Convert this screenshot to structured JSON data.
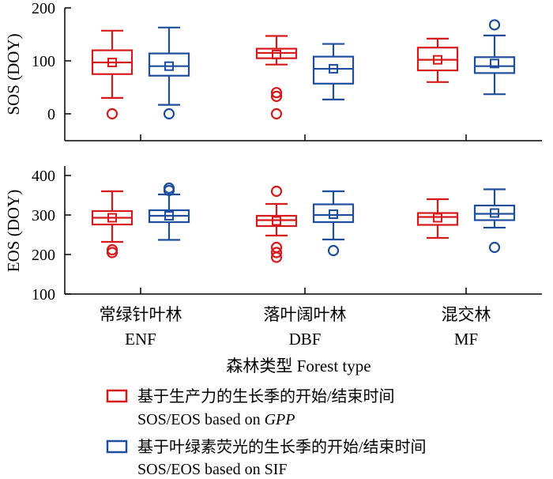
{
  "chart_data": {
    "type": "box",
    "colors": {
      "gpp": "#d7191c",
      "sif": "#1f4e9c",
      "axis": "#000000"
    },
    "xaxis": {
      "categories": [
        {
          "zh": "常绿针叶林",
          "en": "ENF"
        },
        {
          "zh": "落叶阔叶林",
          "en": "DBF"
        },
        {
          "zh": "混交林",
          "en": "MF"
        }
      ],
      "label": "森林类型 Forest type"
    },
    "panels": [
      {
        "ylabel": "SOS (DOY)",
        "ylim": [
          -50,
          200
        ],
        "yticks": [
          "0",
          "100",
          "200"
        ],
        "boxes": [
          {
            "category": "ENF",
            "series": "gpp",
            "whisker_low": 30,
            "q1": 75,
            "median": 97,
            "q3": 120,
            "whisker_high": 157,
            "mean": 97,
            "outliers": [
              0
            ]
          },
          {
            "category": "ENF",
            "series": "sif",
            "whisker_low": 17,
            "q1": 72,
            "median": 90,
            "q3": 114,
            "whisker_high": 163,
            "mean": 90,
            "outliers": [
              0
            ]
          },
          {
            "category": "DBF",
            "series": "gpp",
            "whisker_low": 93,
            "q1": 105,
            "median": 115,
            "q3": 123,
            "whisker_high": 147,
            "mean": 112,
            "outliers": [
              0,
              33,
              40
            ]
          },
          {
            "category": "DBF",
            "series": "sif",
            "whisker_low": 27,
            "q1": 57,
            "median": 85,
            "q3": 108,
            "whisker_high": 132,
            "mean": 85,
            "outliers": []
          },
          {
            "category": "MF",
            "series": "gpp",
            "whisker_low": 60,
            "q1": 82,
            "median": 102,
            "q3": 125,
            "whisker_high": 142,
            "mean": 102,
            "outliers": []
          },
          {
            "category": "MF",
            "series": "sif",
            "whisker_low": 37,
            "q1": 77,
            "median": 90,
            "q3": 107,
            "whisker_high": 148,
            "mean": 95,
            "outliers": [
              168
            ]
          }
        ]
      },
      {
        "ylabel": "EOS (DOY)",
        "ylim": [
          100,
          400
        ],
        "yticks": [
          "100",
          "200",
          "300",
          "400"
        ],
        "boxes": [
          {
            "category": "ENF",
            "series": "gpp",
            "whisker_low": 232,
            "q1": 276,
            "median": 293,
            "q3": 310,
            "whisker_high": 360,
            "mean": 293,
            "outliers": [
              205,
              212
            ]
          },
          {
            "category": "ENF",
            "series": "sif",
            "whisker_low": 237,
            "q1": 282,
            "median": 298,
            "q3": 312,
            "whisker_high": 352,
            "mean": 298,
            "outliers": [
              362,
              368
            ]
          },
          {
            "category": "DBF",
            "series": "gpp",
            "whisker_low": 248,
            "q1": 272,
            "median": 287,
            "q3": 298,
            "whisker_high": 328,
            "mean": 285,
            "outliers": [
              193,
              205,
              218,
              360
            ]
          },
          {
            "category": "DBF",
            "series": "sif",
            "whisker_low": 238,
            "q1": 282,
            "median": 300,
            "q3": 327,
            "whisker_high": 360,
            "mean": 302,
            "outliers": [
              210
            ]
          },
          {
            "category": "MF",
            "series": "gpp",
            "whisker_low": 242,
            "q1": 275,
            "median": 295,
            "q3": 305,
            "whisker_high": 340,
            "mean": 293,
            "outliers": []
          },
          {
            "category": "MF",
            "series": "sif",
            "whisker_low": 268,
            "q1": 287,
            "median": 303,
            "q3": 324,
            "whisker_high": 365,
            "mean": 305,
            "outliers": [
              218
            ]
          }
        ]
      }
    ],
    "legend": {
      "placement": "bottom",
      "entries": [
        {
          "series": "gpp",
          "zh": "基于生产力的生长季的开始/结束时间",
          "en_prefix": "SOS/EOS based on ",
          "en_emph": "GPP"
        },
        {
          "series": "sif",
          "zh": "基于叶绿素荧光的生长季的开始/结束时间",
          "en_prefix": "SOS/EOS based on SIF",
          "en_emph": ""
        }
      ]
    }
  }
}
